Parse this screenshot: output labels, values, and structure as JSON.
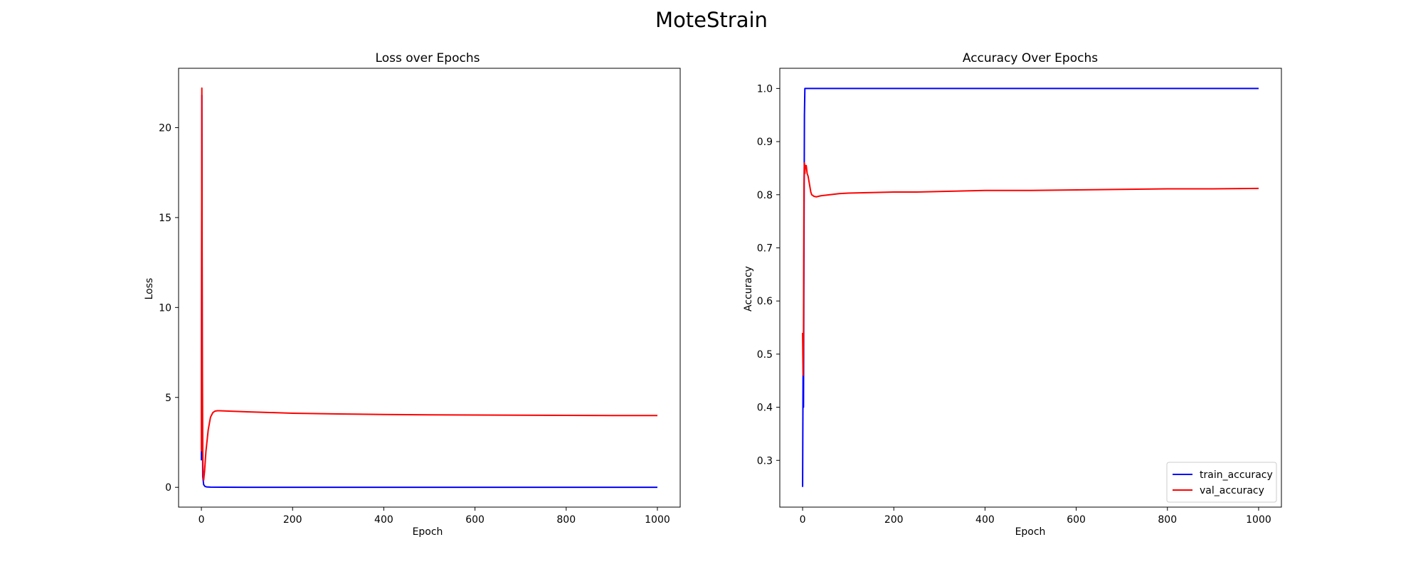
{
  "figure": {
    "title": "MoteStrain"
  },
  "chart_data": [
    {
      "type": "line",
      "title": "Loss over Epochs",
      "xlabel": "Epoch",
      "ylabel": "Loss",
      "xlim": [
        -50,
        1050
      ],
      "ylim": [
        -1.1,
        23.3
      ],
      "xticks": [
        0,
        200,
        400,
        600,
        800,
        1000
      ],
      "yticks": [
        0,
        5,
        10,
        15,
        20
      ],
      "grid": false,
      "legend": null,
      "series": [
        {
          "color": "#0000ff",
          "x": [
            0,
            1,
            2,
            3,
            5,
            8,
            12,
            20,
            50,
            100,
            200,
            400,
            600,
            800,
            1000
          ],
          "y": [
            1.5,
            21.8,
            4.0,
            0.6,
            0.15,
            0.05,
            0.02,
            0.01,
            0.005,
            0.003,
            0.002,
            0.001,
            0.001,
            0.001,
            0.001
          ]
        },
        {
          "color": "#ff0000",
          "x": [
            0,
            1,
            2,
            3,
            4,
            5,
            7,
            10,
            15,
            20,
            25,
            30,
            35,
            40,
            50,
            60,
            80,
            100,
            150,
            200,
            300,
            400,
            500,
            600,
            700,
            800,
            900,
            1000
          ],
          "y": [
            2.0,
            22.2,
            8.0,
            2.0,
            0.5,
            0.4,
            0.9,
            2.0,
            3.2,
            3.9,
            4.15,
            4.24,
            4.26,
            4.26,
            4.25,
            4.24,
            4.22,
            4.2,
            4.16,
            4.12,
            4.08,
            4.05,
            4.03,
            4.02,
            4.01,
            4.0,
            3.99,
            3.99
          ]
        }
      ]
    },
    {
      "type": "line",
      "title": "Accuracy Over Epochs",
      "xlabel": "Epoch",
      "ylabel": "Accuracy",
      "xlim": [
        -50,
        1050
      ],
      "ylim": [
        0.212,
        1.038
      ],
      "xticks": [
        0,
        200,
        400,
        600,
        800,
        1000
      ],
      "yticks": [
        0.3,
        0.4,
        0.5,
        0.6,
        0.7,
        0.8,
        0.9,
        1.0
      ],
      "grid": false,
      "legend": "lower right",
      "series": [
        {
          "name": "train_accuracy",
          "color": "#0000ff",
          "x": [
            0,
            1,
            2,
            3,
            4,
            5,
            6,
            1000
          ],
          "y": [
            0.25,
            0.46,
            0.4,
            0.7,
            0.95,
            1.0,
            1.0,
            1.0
          ]
        },
        {
          "name": "val_accuracy",
          "color": "#ff0000",
          "x": [
            0,
            1,
            2,
            3,
            4,
            5,
            6,
            8,
            10,
            12,
            15,
            18,
            20,
            25,
            30,
            40,
            60,
            80,
            100,
            150,
            200,
            250,
            300,
            400,
            500,
            600,
            700,
            800,
            900,
            1000
          ],
          "y": [
            0.54,
            0.46,
            0.54,
            0.82,
            0.86,
            0.84,
            0.855,
            0.855,
            0.84,
            0.835,
            0.82,
            0.805,
            0.8,
            0.797,
            0.796,
            0.798,
            0.8,
            0.802,
            0.803,
            0.804,
            0.805,
            0.805,
            0.806,
            0.808,
            0.808,
            0.809,
            0.81,
            0.811,
            0.811,
            0.812
          ]
        }
      ]
    }
  ]
}
